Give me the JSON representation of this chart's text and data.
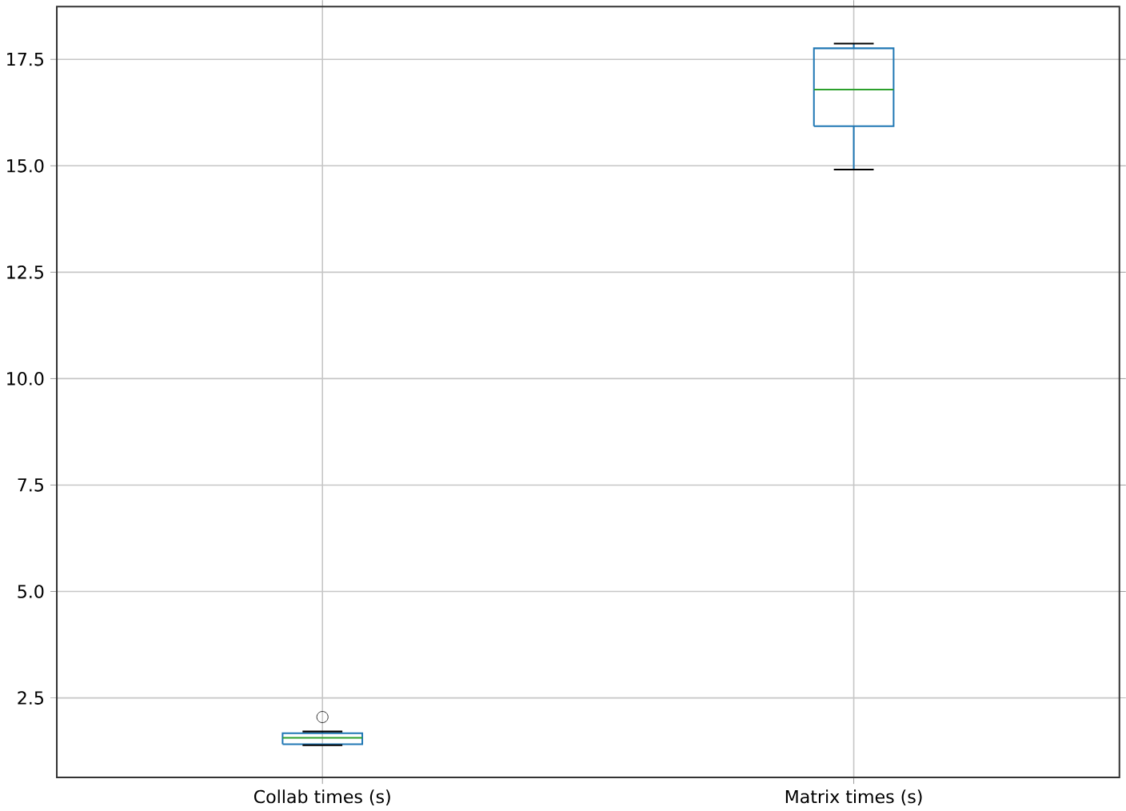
{
  "chart_data": {
    "type": "box",
    "categories": [
      "Collab times (s)",
      "Matrix times (s)"
    ],
    "boxes": [
      {
        "low": 1.39,
        "q1": 1.41,
        "median": 1.56,
        "q3": 1.67,
        "high": 1.71,
        "outliers": [
          2.05
        ]
      },
      {
        "low": 14.91,
        "q1": 15.93,
        "median": 16.79,
        "q3": 17.76,
        "high": 17.87
      }
    ],
    "color": "#1f77b4",
    "ylim": [
      0.63,
      18.74
    ],
    "yticks": [
      {
        "value": 2.5,
        "label": "2.5"
      },
      {
        "value": 5.0,
        "label": "5.0"
      },
      {
        "value": 7.5,
        "label": "7.5"
      },
      {
        "value": 10.0,
        "label": "10.0"
      },
      {
        "value": 12.5,
        "label": "12.5"
      },
      {
        "value": 15.0,
        "label": "15.0"
      },
      {
        "value": 17.5,
        "label": "17.5"
      }
    ],
    "grid": true
  }
}
